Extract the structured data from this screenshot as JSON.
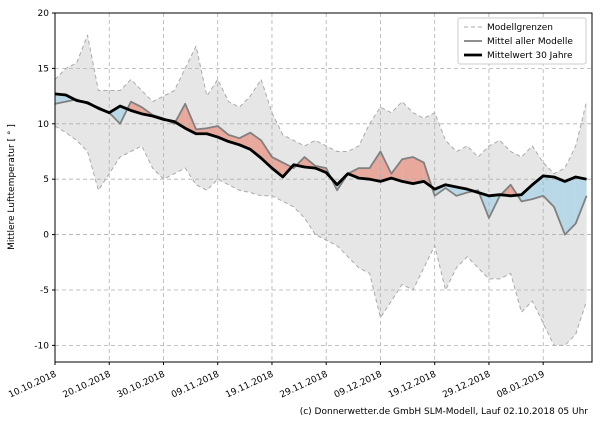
{
  "chart_data": {
    "type": "band-line",
    "ylabel": "Mittlere Lufttemperatur [ ° ]",
    "credit": "(c) Donnerwetter.de GmbH SLM-Modell, Lauf 02.10.2018 05 Uhr",
    "x": [
      "2018-10-10",
      "2018-10-12",
      "2018-10-14",
      "2018-10-16",
      "2018-10-18",
      "2018-10-20",
      "2018-10-22",
      "2018-10-24",
      "2018-10-26",
      "2018-10-28",
      "2018-10-30",
      "2018-11-01",
      "2018-11-03",
      "2018-11-05",
      "2018-11-07",
      "2018-11-09",
      "2018-11-11",
      "2018-11-13",
      "2018-11-15",
      "2018-11-17",
      "2018-11-19",
      "2018-11-21",
      "2018-11-23",
      "2018-11-25",
      "2018-11-27",
      "2018-11-29",
      "2018-12-01",
      "2018-12-03",
      "2018-12-05",
      "2018-12-07",
      "2018-12-09",
      "2018-12-11",
      "2018-12-13",
      "2018-12-15",
      "2018-12-17",
      "2018-12-19",
      "2018-12-21",
      "2018-12-23",
      "2018-12-25",
      "2018-12-27",
      "2018-12-29",
      "2018-12-31",
      "2019-01-02",
      "2019-01-04",
      "2019-01-06",
      "2019-01-08",
      "2019-01-10",
      "2019-01-12",
      "2019-01-14",
      "2019-01-16"
    ],
    "series": [
      {
        "name": "Modellgrenzen",
        "color": "#aaaaaa",
        "fill": "#e6e6e6",
        "upper": [
          14.0,
          15.0,
          15.5,
          18.0,
          13.0,
          13.0,
          13.0,
          14.0,
          13.0,
          12.0,
          12.5,
          13.0,
          15.0,
          17.0,
          12.5,
          14.0,
          12.0,
          11.5,
          12.5,
          14.0,
          11.0,
          9.0,
          8.5,
          8.0,
          8.5,
          8.0,
          7.5,
          7.5,
          8.0,
          10.0,
          11.5,
          11.0,
          12.0,
          11.0,
          10.5,
          11.0,
          8.5,
          7.5,
          8.0,
          7.0,
          8.0,
          8.5,
          7.5,
          7.0,
          8.0,
          6.5,
          5.5,
          6.0,
          8.0,
          12.0
        ],
        "lower": [
          9.8,
          9.2,
          8.5,
          7.5,
          4.0,
          5.5,
          7.0,
          7.5,
          8.0,
          6.0,
          5.0,
          5.5,
          6.0,
          4.5,
          4.0,
          5.0,
          4.5,
          4.0,
          3.8,
          3.5,
          3.5,
          3.0,
          2.5,
          1.5,
          0.0,
          -0.5,
          -1.0,
          -2.0,
          -3.0,
          -3.5,
          -7.5,
          -6.0,
          -4.5,
          -5.0,
          -3.0,
          -1.0,
          -5.0,
          -3.0,
          -2.0,
          -3.0,
          -4.0,
          -4.0,
          -3.5,
          -7.0,
          -6.0,
          -8.0,
          -10.0,
          -10.0,
          -9.0,
          -6.0
        ]
      },
      {
        "name": "Mittel aller Modelle",
        "color": "#808080",
        "values": [
          11.8,
          12.0,
          12.2,
          11.8,
          11.5,
          11.0,
          10.0,
          12.0,
          11.5,
          10.8,
          10.5,
          10.0,
          11.8,
          9.5,
          9.6,
          9.8,
          9.0,
          8.7,
          9.2,
          8.5,
          7.0,
          6.5,
          6.0,
          7.0,
          6.2,
          6.0,
          4.0,
          5.5,
          6.0,
          6.0,
          7.5,
          5.5,
          6.8,
          7.0,
          6.5,
          3.5,
          4.2,
          3.5,
          3.8,
          4.0,
          1.5,
          3.5,
          4.5,
          3.0,
          3.2,
          3.5,
          2.5,
          0.0,
          1.0,
          3.5
        ]
      },
      {
        "name": "Mittelwert 30 Jahre",
        "color": "#000000",
        "values": [
          12.7,
          12.6,
          12.1,
          11.9,
          11.4,
          11.0,
          11.6,
          11.2,
          10.9,
          10.7,
          10.4,
          10.2,
          9.6,
          9.1,
          9.1,
          8.8,
          8.4,
          8.1,
          7.7,
          6.9,
          6.0,
          5.2,
          6.3,
          6.1,
          6.0,
          5.6,
          4.5,
          5.5,
          5.1,
          5.0,
          4.8,
          5.1,
          4.8,
          4.6,
          4.8,
          4.1,
          4.5,
          4.3,
          4.1,
          3.8,
          3.5,
          3.6,
          3.5,
          3.6,
          4.5,
          5.3,
          5.2,
          4.8,
          5.2,
          5.0
        ]
      }
    ],
    "above_color": "#e8a89c",
    "below_color": "#b8d8e8",
    "xlim": [
      "2018-10-10",
      "2019-01-17"
    ],
    "xticks": [
      {
        "value": "2018-10-10",
        "label": "10.10.2018"
      },
      {
        "value": "2018-10-20",
        "label": "20.10.2018"
      },
      {
        "value": "2018-10-30",
        "label": "30.10.2018"
      },
      {
        "value": "2018-11-09",
        "label": "09.11.2018"
      },
      {
        "value": "2018-11-19",
        "label": "19.11.2018"
      },
      {
        "value": "2018-11-29",
        "label": "29.11.2018"
      },
      {
        "value": "2018-12-09",
        "label": "09.12.2018"
      },
      {
        "value": "2018-12-19",
        "label": "19.12.2018"
      },
      {
        "value": "2018-12-29",
        "label": "29.12.2018"
      },
      {
        "value": "2019-01-08",
        "label": "08.01.2019"
      }
    ],
    "ylim": [
      -11.5,
      20
    ],
    "yticks": [
      -10,
      -5,
      0,
      5,
      10,
      15,
      20
    ],
    "grid": true,
    "legend": "upper right"
  }
}
